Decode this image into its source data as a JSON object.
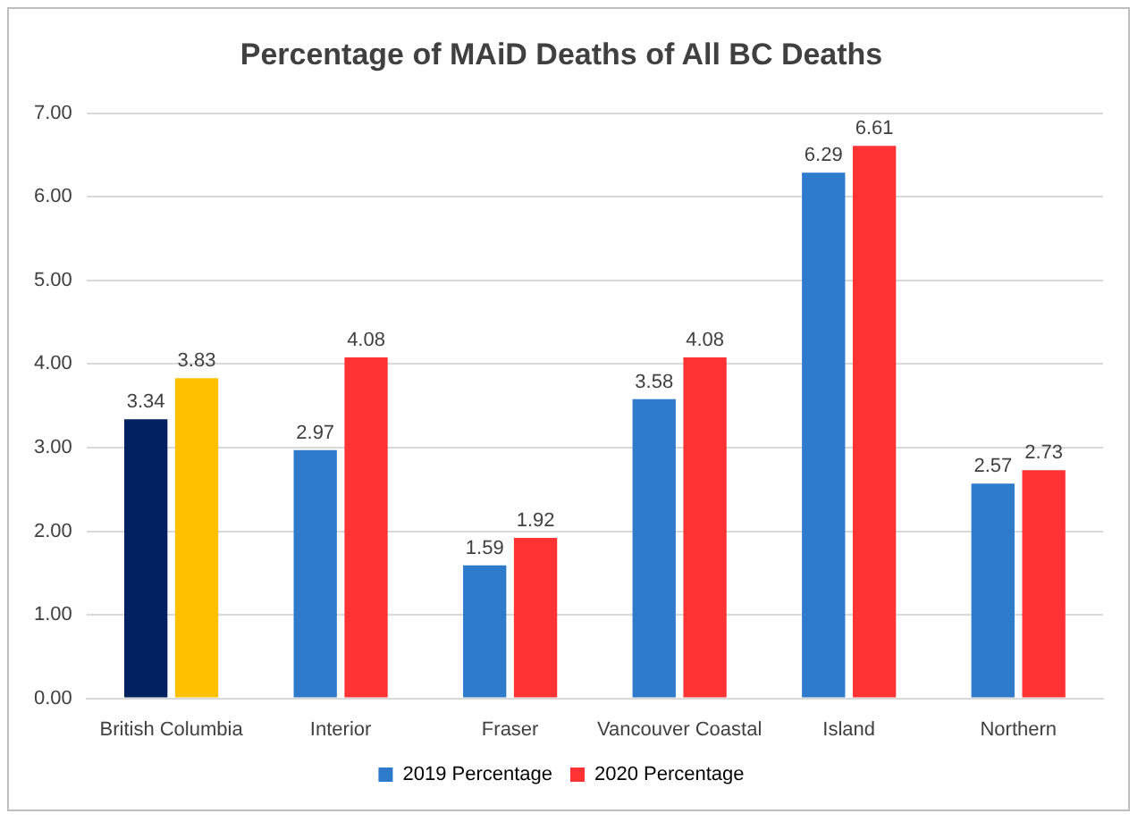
{
  "chart_data": {
    "type": "bar",
    "title": "Percentage of MAiD Deaths of All BC Deaths",
    "categories": [
      "British Columbia",
      "Interior",
      "Fraser",
      "Vancouver Coastal",
      "Island",
      "Northern"
    ],
    "series": [
      {
        "name": "2019 Percentage",
        "color": "#2e7bcb",
        "colors": [
          "#002060",
          "#2e7bcb",
          "#2e7bcb",
          "#2e7bcb",
          "#2e7bcb",
          "#2e7bcb"
        ],
        "values": [
          3.34,
          2.97,
          1.59,
          3.58,
          6.29,
          2.57
        ]
      },
      {
        "name": "2020 Percentage",
        "color": "#ff3333",
        "colors": [
          "#ffc000",
          "#ff3333",
          "#ff3333",
          "#ff3333",
          "#ff3333",
          "#ff3333"
        ],
        "values": [
          3.83,
          4.08,
          1.92,
          4.08,
          6.61,
          2.73
        ]
      }
    ],
    "ylim": [
      0,
      7
    ],
    "yticks": [
      {
        "value": 0,
        "label": "0.00"
      },
      {
        "value": 1,
        "label": "1.00"
      },
      {
        "value": 2,
        "label": "2.00"
      },
      {
        "value": 3,
        "label": "3.00"
      },
      {
        "value": 4,
        "label": "4.00"
      },
      {
        "value": 5,
        "label": "5.00"
      },
      {
        "value": 6,
        "label": "6.00"
      },
      {
        "value": 7,
        "label": "7.00"
      }
    ],
    "grid": "y",
    "legend": "bottom",
    "data_labels": true
  }
}
